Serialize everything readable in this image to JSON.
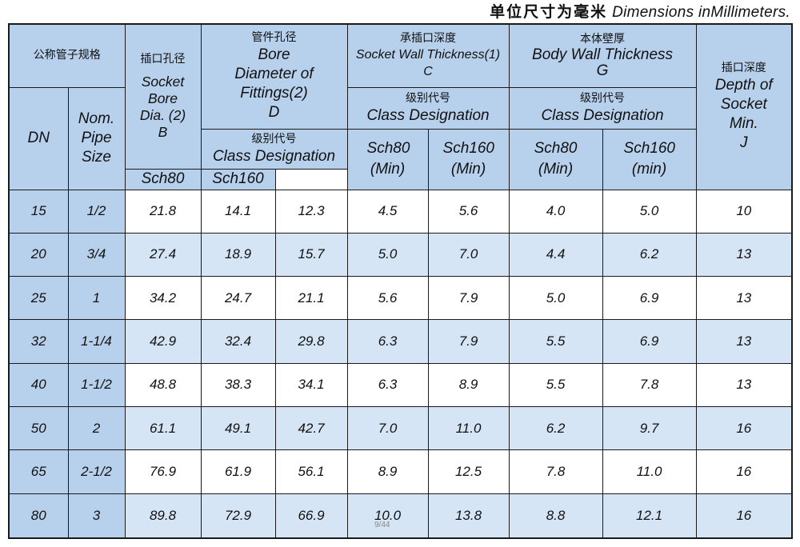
{
  "units_note": {
    "zh": "单位尺寸为毫米",
    "en": "Dimensions inMillimeters."
  },
  "header": {
    "nominal_group_zh": "公称管子规格",
    "dn": "DN",
    "nps": "Nom. Pipe Size",
    "socket_bore": {
      "zh": "插口孔径",
      "en": "Socket Bore Dia. (2)",
      "sym": "B"
    },
    "bore_fittings": {
      "zh": "管件孔径",
      "en": "Bore Diameter of Fittings(2)",
      "sym": "D"
    },
    "socket_wall": {
      "zh": "承插口深度",
      "en": "Socket Wall Thickness(1)",
      "sym": "C"
    },
    "body_wall": {
      "zh": "本体壁厚",
      "en": "Body Wall Thickness",
      "sym": "G"
    },
    "depth_socket": {
      "zh": "插口深度",
      "en": "Depth of Socket Min.",
      "sym": "J"
    },
    "class_zh": "级别代号",
    "class_en": "Class Designation",
    "sch80": "Sch80",
    "sch160": "Sch160",
    "sch80_min": "Sch80 (Min)",
    "sch160_min_c": "Sch160 (Min)",
    "sch80_min_g": "Sch80 (Min)",
    "sch160_min_g": "Sch160 (min)"
  },
  "rows": [
    {
      "dn": "15",
      "nps": "1/2",
      "b": "21.8",
      "d80": "14.1",
      "d160": "12.3",
      "c80": "4.5",
      "c160": "5.6",
      "g80": "4.0",
      "g160": "5.0",
      "j": "10"
    },
    {
      "dn": "20",
      "nps": "3/4",
      "b": "27.4",
      "d80": "18.9",
      "d160": "15.7",
      "c80": "5.0",
      "c160": "7.0",
      "g80": "4.4",
      "g160": "6.2",
      "j": "13"
    },
    {
      "dn": "25",
      "nps": "1",
      "b": "34.2",
      "d80": "24.7",
      "d160": "21.1",
      "c80": "5.6",
      "c160": "7.9",
      "g80": "5.0",
      "g160": "6.9",
      "j": "13"
    },
    {
      "dn": "32",
      "nps": "1-1/4",
      "b": "42.9",
      "d80": "32.4",
      "d160": "29.8",
      "c80": "6.3",
      "c160": "7.9",
      "g80": "5.5",
      "g160": "6.9",
      "j": "13"
    },
    {
      "dn": "40",
      "nps": "1-1/2",
      "b": "48.8",
      "d80": "38.3",
      "d160": "34.1",
      "c80": "6.3",
      "c160": "8.9",
      "g80": "5.5",
      "g160": "7.8",
      "j": "13"
    },
    {
      "dn": "50",
      "nps": "2",
      "b": "61.1",
      "d80": "49.1",
      "d160": "42.7",
      "c80": "7.0",
      "c160": "11.0",
      "g80": "6.2",
      "g160": "9.7",
      "j": "16"
    },
    {
      "dn": "65",
      "nps": "2-1/2",
      "b": "76.9",
      "d80": "61.9",
      "d160": "56.1",
      "c80": "8.9",
      "c160": "12.5",
      "g80": "7.8",
      "g160": "11.0",
      "j": "16"
    },
    {
      "dn": "80",
      "nps": "3",
      "b": "89.8",
      "d80": "72.9",
      "d160": "66.9",
      "c80": "10.0",
      "c160": "13.8",
      "g80": "8.8",
      "g160": "12.1",
      "j": "16"
    }
  ],
  "page_number": "9/44",
  "colors": {
    "header_bg": "#b7d0ec",
    "row_alt_bg": "#d6e5f5",
    "border": "#1a1a1a"
  }
}
